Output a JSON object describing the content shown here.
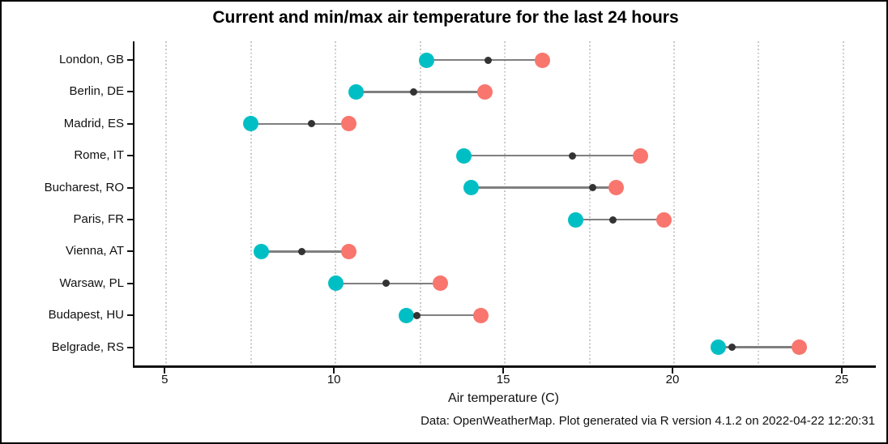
{
  "figure": {
    "title": "Current and min/max air temperature for the last 24 hours",
    "xlabel": "Air temperature (C)",
    "caption": "Data: OpenWeatherMap. Plot generated via R version 4.1.2 on 2022-04-22 12:20:31"
  },
  "chart_data": {
    "type": "scatter",
    "subtype": "dumbbell",
    "title": "Current and min/max air temperature for the last 24 hours",
    "xlabel": "Air temperature (C)",
    "ylabel": "",
    "caption": "Data: OpenWeatherMap. Plot generated via R version 4.1.2 on 2022-04-22 12:20:31",
    "categories": [
      "London, GB",
      "Berlin, DE",
      "Madrid, ES",
      "Rome, IT",
      "Bucharest, RO",
      "Paris, FR",
      "Vienna, AT",
      "Warsaw, PL",
      "Budapest, HU",
      "Belgrade, RS"
    ],
    "series": [
      {
        "name": "min",
        "color": "#00BFC4",
        "values": [
          12.7,
          10.6,
          7.5,
          13.8,
          14.0,
          17.1,
          7.8,
          10.0,
          12.1,
          21.3
        ]
      },
      {
        "name": "current",
        "color": "#333333",
        "values": [
          14.5,
          12.3,
          9.3,
          17.0,
          17.6,
          18.2,
          9.0,
          11.5,
          12.4,
          21.7
        ]
      },
      {
        "name": "max",
        "color": "#F8766D",
        "values": [
          16.1,
          14.4,
          10.4,
          19.0,
          18.3,
          19.7,
          10.4,
          13.1,
          14.3,
          23.7
        ]
      }
    ],
    "x_ticks": [
      5,
      10,
      15,
      20,
      25
    ],
    "grid_values": [
      5,
      7.5,
      10,
      12.5,
      15,
      17.5,
      20,
      22.5,
      25
    ],
    "xlim": [
      4.06,
      25.96
    ],
    "grid": "vertical-dotted",
    "legend_position": "none",
    "connector_color": "#7f7f7f",
    "gridline_color": "#c8c8c8"
  }
}
